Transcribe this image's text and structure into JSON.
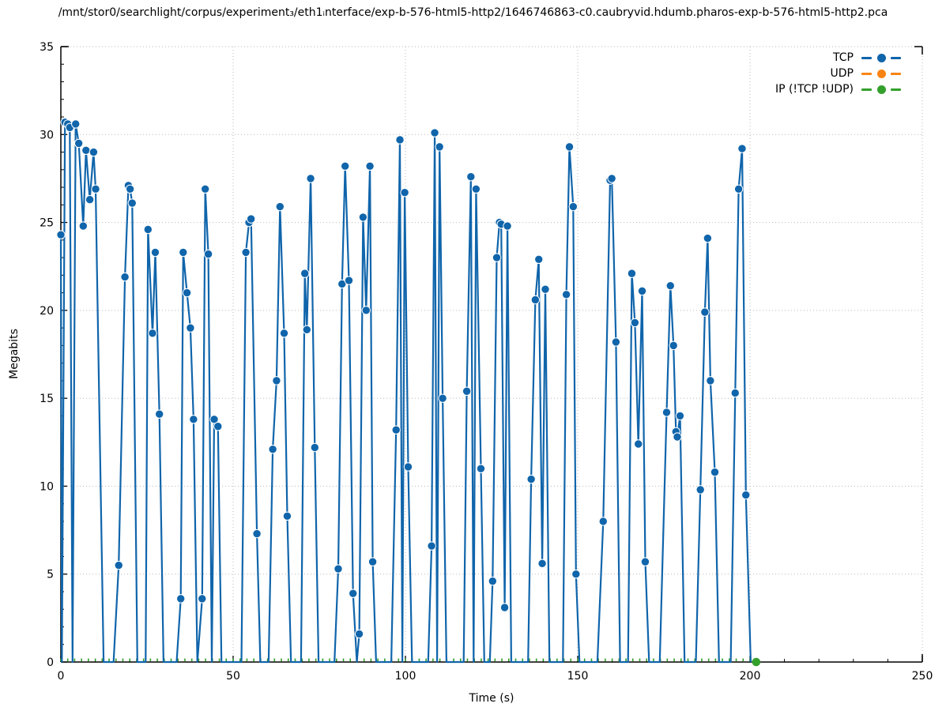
{
  "title": "/mnt/stor0/searchlight/corpus/experiment₃/eth1ᵢnterface/exp-b-576-html5-http2/1646746863-c0.caubryvid.hdumb.pharos-exp-b-576-html5-http2.pca",
  "legend": {
    "position": "top-right-inside",
    "items": [
      {
        "label": "TCP",
        "color": "#1065ab"
      },
      {
        "label": "UDP",
        "color": "#f98413"
      },
      {
        "label": "IP (!TCP  !UDP)",
        "color": "#33a02c"
      }
    ]
  },
  "axes": {
    "xlabel": "Time (s)",
    "ylabel": "Megabits",
    "x_ticks": [
      0,
      50,
      100,
      150,
      200,
      250
    ],
    "y_ticks": [
      0,
      5,
      10,
      15,
      20,
      25,
      30,
      35
    ],
    "xlim": [
      0,
      250
    ],
    "ylim": [
      0,
      35
    ]
  },
  "chart_data": {
    "type": "line",
    "title": "/mnt/stor0/searchlight/corpus/experiment₃/eth1ᵢnterface/exp-b-576-html5-http2/1646746863-c0.caubryvid.hdumb.pharos-exp-b-576-html5-http2.pca",
    "xlabel": "Time (s)",
    "ylabel": "Megabits",
    "xlim": [
      0,
      250
    ],
    "ylim": [
      0,
      35
    ],
    "grid": true,
    "legend_position": "top-right",
    "marker": "filled-circle",
    "series": [
      {
        "name": "TCP",
        "color": "#1065ab",
        "points": [
          [
            0,
            24.3
          ],
          [
            0.3,
            0
          ],
          [
            1.2,
            30.7
          ],
          [
            2.0,
            30.6
          ],
          [
            2.6,
            30.4
          ],
          [
            3.4,
            0
          ],
          [
            4.3,
            30.6
          ],
          [
            5.2,
            29.5
          ],
          [
            6.5,
            24.8
          ],
          [
            7.3,
            29.1
          ],
          [
            8.4,
            26.3
          ],
          [
            9.5,
            29.0
          ],
          [
            10.1,
            26.9
          ],
          [
            12.4,
            0
          ],
          [
            15.3,
            0
          ],
          [
            16.8,
            5.5
          ],
          [
            18.6,
            21.9
          ],
          [
            19.6,
            27.1
          ],
          [
            20.1,
            26.9
          ],
          [
            20.7,
            26.1
          ],
          [
            22.2,
            0
          ],
          [
            24.6,
            0
          ],
          [
            25.3,
            24.6
          ],
          [
            26.6,
            18.7
          ],
          [
            27.4,
            23.3
          ],
          [
            28.6,
            14.1
          ],
          [
            29.8,
            0
          ],
          [
            33.6,
            0
          ],
          [
            34.8,
            3.6
          ],
          [
            35.5,
            23.3
          ],
          [
            36.6,
            21.0
          ],
          [
            37.6,
            19.0
          ],
          [
            38.5,
            13.8
          ],
          [
            39.6,
            0
          ],
          [
            41.0,
            3.6
          ],
          [
            41.9,
            26.9
          ],
          [
            42.8,
            23.2
          ],
          [
            43.8,
            0
          ],
          [
            44.5,
            13.8
          ],
          [
            45.6,
            13.4
          ],
          [
            46.6,
            0
          ],
          [
            52.4,
            0
          ],
          [
            53.7,
            23.3
          ],
          [
            54.6,
            25.0
          ],
          [
            55.2,
            25.2
          ],
          [
            56.9,
            7.3
          ],
          [
            57.9,
            0
          ],
          [
            60.3,
            0
          ],
          [
            61.5,
            12.1
          ],
          [
            62.6,
            16.0
          ],
          [
            63.6,
            25.9
          ],
          [
            64.8,
            18.7
          ],
          [
            65.7,
            8.3
          ],
          [
            66.8,
            0
          ],
          [
            69.7,
            0
          ],
          [
            70.8,
            22.1
          ],
          [
            71.4,
            18.9
          ],
          [
            72.5,
            27.5
          ],
          [
            73.7,
            12.2
          ],
          [
            74.8,
            0
          ],
          [
            79.4,
            0
          ],
          [
            80.5,
            5.3
          ],
          [
            81.6,
            21.5
          ],
          [
            82.5,
            28.2
          ],
          [
            83.6,
            21.7
          ],
          [
            84.8,
            3.9
          ],
          [
            85.9,
            0
          ],
          [
            86.6,
            1.6
          ],
          [
            87.7,
            25.3
          ],
          [
            88.6,
            20.0
          ],
          [
            89.7,
            28.2
          ],
          [
            90.5,
            5.7
          ],
          [
            91.5,
            0
          ],
          [
            95.9,
            0
          ],
          [
            97.3,
            13.2
          ],
          [
            98.4,
            29.7
          ],
          [
            99.1,
            0
          ],
          [
            99.8,
            26.7
          ],
          [
            100.8,
            11.1
          ],
          [
            101.9,
            0
          ],
          [
            106.6,
            0
          ],
          [
            107.6,
            6.6
          ],
          [
            108.5,
            30.1
          ],
          [
            109.2,
            0
          ],
          [
            109.9,
            29.3
          ],
          [
            110.8,
            15.0
          ],
          [
            111.9,
            0
          ],
          [
            116.9,
            0
          ],
          [
            117.8,
            15.4
          ],
          [
            119.0,
            27.6
          ],
          [
            119.8,
            0
          ],
          [
            120.5,
            26.9
          ],
          [
            121.9,
            11.0
          ],
          [
            122.9,
            0
          ],
          [
            124.5,
            0
          ],
          [
            125.3,
            4.6
          ],
          [
            126.5,
            23.0
          ],
          [
            127.3,
            25.0
          ],
          [
            127.8,
            24.9
          ],
          [
            128.8,
            3.1
          ],
          [
            129.6,
            24.8
          ],
          [
            130.7,
            0
          ],
          [
            135.6,
            0
          ],
          [
            136.5,
            10.4
          ],
          [
            137.7,
            20.6
          ],
          [
            138.7,
            22.9
          ],
          [
            139.7,
            5.6
          ],
          [
            140.6,
            21.2
          ],
          [
            141.8,
            0
          ],
          [
            145.7,
            0
          ],
          [
            146.7,
            20.9
          ],
          [
            147.6,
            29.3
          ],
          [
            148.7,
            25.9
          ],
          [
            149.5,
            5.0
          ],
          [
            150.5,
            0
          ],
          [
            155.7,
            0
          ],
          [
            157.4,
            8.0
          ],
          [
            159.4,
            27.4
          ],
          [
            159.9,
            27.5
          ],
          [
            161.1,
            18.2
          ],
          [
            162.3,
            0
          ],
          [
            164.6,
            0
          ],
          [
            165.7,
            22.1
          ],
          [
            166.6,
            19.3
          ],
          [
            167.6,
            12.4
          ],
          [
            168.7,
            21.1
          ],
          [
            169.6,
            5.7
          ],
          [
            170.7,
            0
          ],
          [
            173.8,
            0
          ],
          [
            175.8,
            14.2
          ],
          [
            176.9,
            21.4
          ],
          [
            177.8,
            18.0
          ],
          [
            178.5,
            13.1
          ],
          [
            178.9,
            12.8
          ],
          [
            179.7,
            14.0
          ],
          [
            181.0,
            0
          ],
          [
            184.3,
            0
          ],
          [
            185.6,
            9.8
          ],
          [
            186.9,
            19.9
          ],
          [
            187.7,
            24.1
          ],
          [
            188.5,
            16.0
          ],
          [
            189.8,
            10.8
          ],
          [
            191.0,
            0
          ],
          [
            194.4,
            0
          ],
          [
            195.7,
            15.3
          ],
          [
            196.7,
            26.9
          ],
          [
            197.7,
            29.2
          ],
          [
            198.8,
            9.5
          ],
          [
            200.2,
            0
          ]
        ]
      },
      {
        "name": "UDP",
        "color": "#f98413",
        "points": [],
        "note": "no visible data (at or near 0 for entire capture)"
      },
      {
        "name": "IP (!TCP  !UDP)",
        "color": "#33a02c",
        "points": [
          [
            201.8,
            0
          ]
        ],
        "baseline": {
          "from": 0,
          "to": 201.8,
          "value": 0,
          "mark_interval_s": 2
        }
      }
    ]
  }
}
